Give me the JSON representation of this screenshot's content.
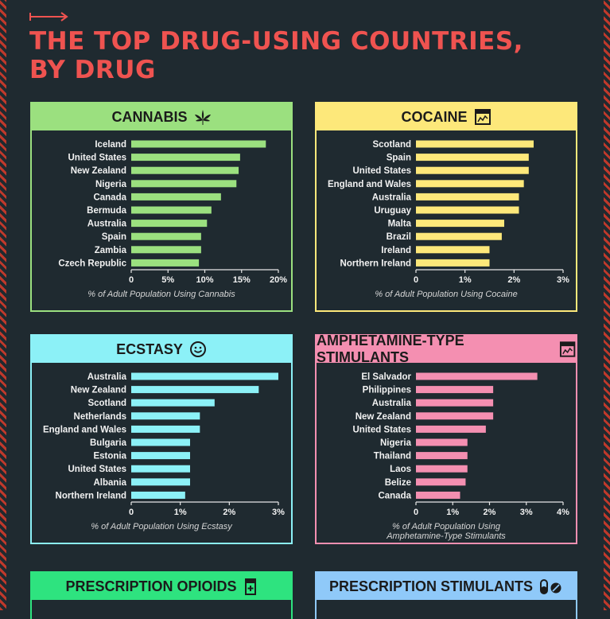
{
  "title_line1": "THE TOP DRUG-USING COUNTRIES,",
  "title_line2": "BY DRUG",
  "chart_data": [
    {
      "type": "bar",
      "title": "CANNABIS",
      "icon": "cannabis-leaf-icon",
      "color": "#9be07f",
      "categories": [
        "Iceland",
        "United States",
        "New Zealand",
        "Nigeria",
        "Canada",
        "Bermuda",
        "Australia",
        "Spain",
        "Zambia",
        "Czech Republic"
      ],
      "values": [
        18.3,
        14.8,
        14.6,
        14.3,
        12.2,
        10.9,
        10.3,
        9.5,
        9.5,
        9.2
      ],
      "xlim": [
        0,
        20
      ],
      "ticks": [
        "0",
        "5%",
        "10%",
        "15%",
        "20%"
      ],
      "xlabel": [
        "% of Adult Population Using Cannabis"
      ]
    },
    {
      "type": "bar",
      "title": "COCAINE",
      "icon": "chart-box-icon",
      "color": "#fde87a",
      "categories": [
        "Scotland",
        "Spain",
        "United States",
        "England and Wales",
        "Australia",
        "Uruguay",
        "Malta",
        "Brazil",
        "Ireland",
        "Northern Ireland"
      ],
      "values": [
        2.4,
        2.3,
        2.3,
        2.2,
        2.1,
        2.1,
        1.8,
        1.75,
        1.5,
        1.5
      ],
      "xlim": [
        0,
        3
      ],
      "ticks": [
        "0",
        "1%",
        "2%",
        "3%"
      ],
      "xlabel": [
        "% of Adult Population Using Cocaine"
      ]
    },
    {
      "type": "bar",
      "title": "ECSTASY",
      "icon": "smiley-icon",
      "color": "#8cf1f7",
      "categories": [
        "Australia",
        "New Zealand",
        "Scotland",
        "Netherlands",
        "England and Wales",
        "Bulgaria",
        "Estonia",
        "United States",
        "Albania",
        "Northern Ireland"
      ],
      "values": [
        3.0,
        2.6,
        1.7,
        1.4,
        1.4,
        1.2,
        1.2,
        1.2,
        1.2,
        1.1
      ],
      "xlim": [
        0,
        3
      ],
      "ticks": [
        "0",
        "1%",
        "2%",
        "3%"
      ],
      "xlabel": [
        "% of Adult Population Using Ecstasy"
      ]
    },
    {
      "type": "bar",
      "title": "AMPHETAMINE-TYPE STIMULANTS",
      "icon": "chart-box-icon",
      "color": "#f48fb1",
      "categories": [
        "El Salvador",
        "Philippines",
        "Australia",
        "New Zealand",
        "United States",
        "Nigeria",
        "Thailand",
        "Laos",
        "Belize",
        "Canada"
      ],
      "values": [
        3.3,
        2.1,
        2.1,
        2.1,
        1.9,
        1.4,
        1.4,
        1.4,
        1.35,
        1.2
      ],
      "xlim": [
        0,
        4
      ],
      "ticks": [
        "0",
        "1%",
        "2%",
        "3%",
        "4%"
      ],
      "xlabel": [
        "% of Adult Population Using",
        "Amphetamine-Type Stimulants"
      ]
    }
  ],
  "stubs": [
    {
      "title": "PRESCRIPTION OPIOIDS",
      "icon": "pill-bottle-icon",
      "color": "#2ee37f"
    },
    {
      "title": "PRESCRIPTION STIMULANTS",
      "icon": "capsule-icon",
      "color": "#8fc9f9"
    }
  ]
}
